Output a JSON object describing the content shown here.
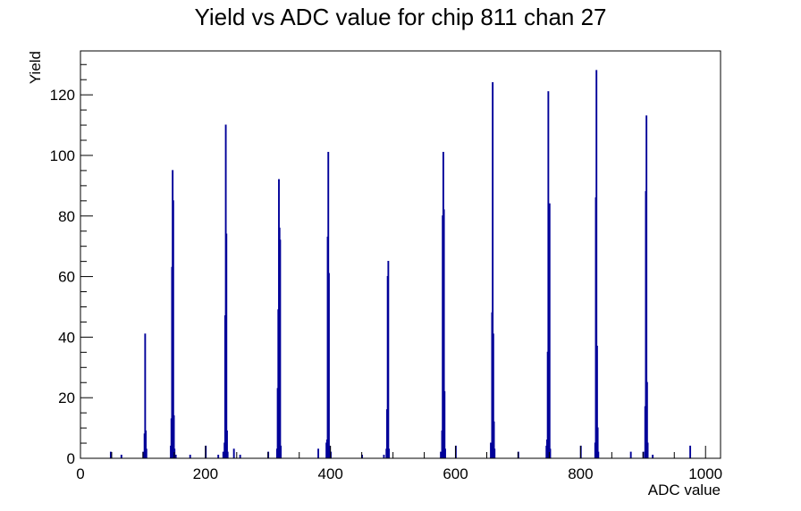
{
  "chart_data": {
    "type": "bar",
    "title": "Yield vs ADC value for chip 811 chan 27",
    "xlabel": "ADC value",
    "ylabel": "Yield",
    "xlim": [
      0,
      1024
    ],
    "ylim": [
      0,
      134.5
    ],
    "grid": false,
    "legend": "none",
    "line_color": "#000099",
    "x_ticks": [
      0,
      200,
      400,
      600,
      800,
      1000
    ],
    "y_ticks": [
      0,
      20,
      40,
      60,
      80,
      100,
      120
    ],
    "bins": [
      [
        48,
        2
      ],
      [
        65,
        1
      ],
      [
        100,
        2
      ],
      [
        102,
        8
      ],
      [
        103,
        41
      ],
      [
        104,
        9
      ],
      [
        105,
        3
      ],
      [
        144,
        4
      ],
      [
        145,
        13
      ],
      [
        146,
        63
      ],
      [
        147,
        95
      ],
      [
        148,
        85
      ],
      [
        149,
        14
      ],
      [
        150,
        3
      ],
      [
        152,
        1
      ],
      [
        175,
        1
      ],
      [
        200,
        4
      ],
      [
        220,
        1
      ],
      [
        228,
        2
      ],
      [
        230,
        5
      ],
      [
        231,
        47
      ],
      [
        232,
        110
      ],
      [
        233,
        74
      ],
      [
        234,
        9
      ],
      [
        235,
        2
      ],
      [
        245,
        3
      ],
      [
        255,
        1
      ],
      [
        300,
        2
      ],
      [
        314,
        3
      ],
      [
        315,
        23
      ],
      [
        316,
        49
      ],
      [
        317,
        92
      ],
      [
        318,
        76
      ],
      [
        319,
        72
      ],
      [
        320,
        4
      ],
      [
        380,
        3
      ],
      [
        393,
        5
      ],
      [
        394,
        6
      ],
      [
        395,
        73
      ],
      [
        396,
        101
      ],
      [
        397,
        61
      ],
      [
        398,
        4
      ],
      [
        400,
        2
      ],
      [
        450,
        1
      ],
      [
        485,
        1
      ],
      [
        489,
        3
      ],
      [
        490,
        16
      ],
      [
        491,
        60
      ],
      [
        492,
        65
      ],
      [
        493,
        3
      ],
      [
        576,
        2
      ],
      [
        578,
        9
      ],
      [
        579,
        80
      ],
      [
        580,
        101
      ],
      [
        581,
        82
      ],
      [
        582,
        22
      ],
      [
        583,
        3
      ],
      [
        600,
        4
      ],
      [
        656,
        5
      ],
      [
        657,
        4
      ],
      [
        658,
        48
      ],
      [
        659,
        124
      ],
      [
        660,
        41
      ],
      [
        661,
        12
      ],
      [
        662,
        3
      ],
      [
        700,
        2
      ],
      [
        745,
        4
      ],
      [
        746,
        6
      ],
      [
        747,
        35
      ],
      [
        748,
        121
      ],
      [
        749,
        40
      ],
      [
        750,
        84
      ],
      [
        751,
        3
      ],
      [
        800,
        4
      ],
      [
        823,
        5
      ],
      [
        824,
        86
      ],
      [
        825,
        128
      ],
      [
        826,
        37
      ],
      [
        827,
        10
      ],
      [
        828,
        2
      ],
      [
        880,
        2
      ],
      [
        900,
        2
      ],
      [
        903,
        17
      ],
      [
        904,
        88
      ],
      [
        905,
        113
      ],
      [
        906,
        25
      ],
      [
        907,
        5
      ],
      [
        915,
        1
      ],
      [
        975,
        4
      ]
    ]
  }
}
